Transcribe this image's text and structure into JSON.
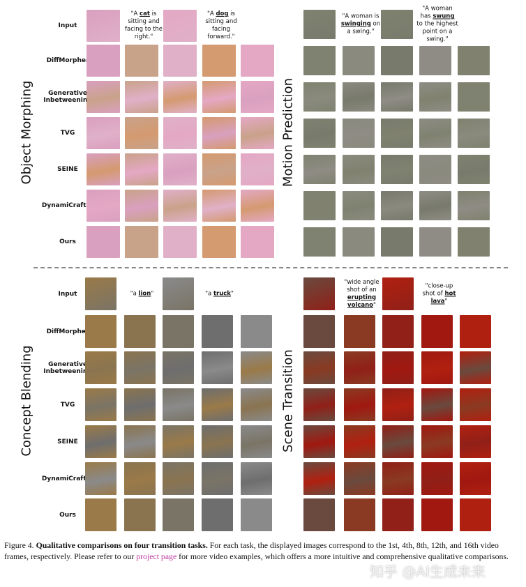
{
  "panels": [
    {
      "key": "object-morphing",
      "title": "Object Morphing",
      "input": {
        "label": "Input",
        "prompt1_pre": "\"A ",
        "prompt1_key": "cat",
        "prompt1_post": " is sitting and facing to the right.\"",
        "prompt2_pre": "\"A ",
        "prompt2_key": "dog",
        "prompt2_post": " is sitting and facing forward.\""
      },
      "colors": [
        "#d9a0bf",
        "#c9a28a",
        "#e0b0c8",
        "#d49a70",
        "#e4a8c4"
      ]
    },
    {
      "key": "motion-prediction",
      "title": "Motion Prediction",
      "input": {
        "label": "Input",
        "prompt1_pre": "\"A woman is ",
        "prompt1_key": "swinging",
        "prompt1_post": " on a swing.\"",
        "prompt2_pre": "\"A woman has ",
        "prompt2_key": "swung",
        "prompt2_post": " to the highest point on a swing.\""
      },
      "colors": [
        "#7f8270",
        "#8a8a7e",
        "#787a6c",
        "#8e8c84",
        "#80826f"
      ]
    },
    {
      "key": "concept-blending",
      "title": "Concept Blending",
      "input": {
        "label": "Input",
        "prompt1_pre": "\"a ",
        "prompt1_key": "lion",
        "prompt1_post": "\"",
        "prompt2_pre": "\"a ",
        "prompt2_key": "truck",
        "prompt2_post": "\""
      },
      "colors": [
        "#9a7a48",
        "#8a7450",
        "#7a7466",
        "#6e6e6e",
        "#8a8a8a"
      ]
    },
    {
      "key": "scene-transition",
      "title": "Scene Transition",
      "input": {
        "label": "Input",
        "prompt1_pre": "\"wide angle shot of an ",
        "prompt1_key": "erupting volcano",
        "prompt1_post": "\"",
        "prompt2_pre": "\"close-up shot of ",
        "prompt2_key": "hot lava",
        "prompt2_post": "\""
      },
      "colors": [
        "#6a4a3e",
        "#8a3a22",
        "#902018",
        "#a01810",
        "#b02010"
      ]
    }
  ],
  "methods": [
    "DiffMorpher",
    "Generative Inbetweening",
    "TVG",
    "SEINE",
    "DynamiCrafter",
    "Ours"
  ],
  "caption": {
    "prefix": "Figure 4.",
    "bold": "Qualitative comparisons on four transition tasks.",
    "text1": " For each task, the displayed images correspond to the 1st, 4th, 8th, 12th, and 16th video frames, respectively. Please refer to our ",
    "link": "project page",
    "text2": " for more video examples, which offers a more intuitive and comprehensive qualitative comparisons."
  },
  "watermark": "知乎 @AI生成未来"
}
